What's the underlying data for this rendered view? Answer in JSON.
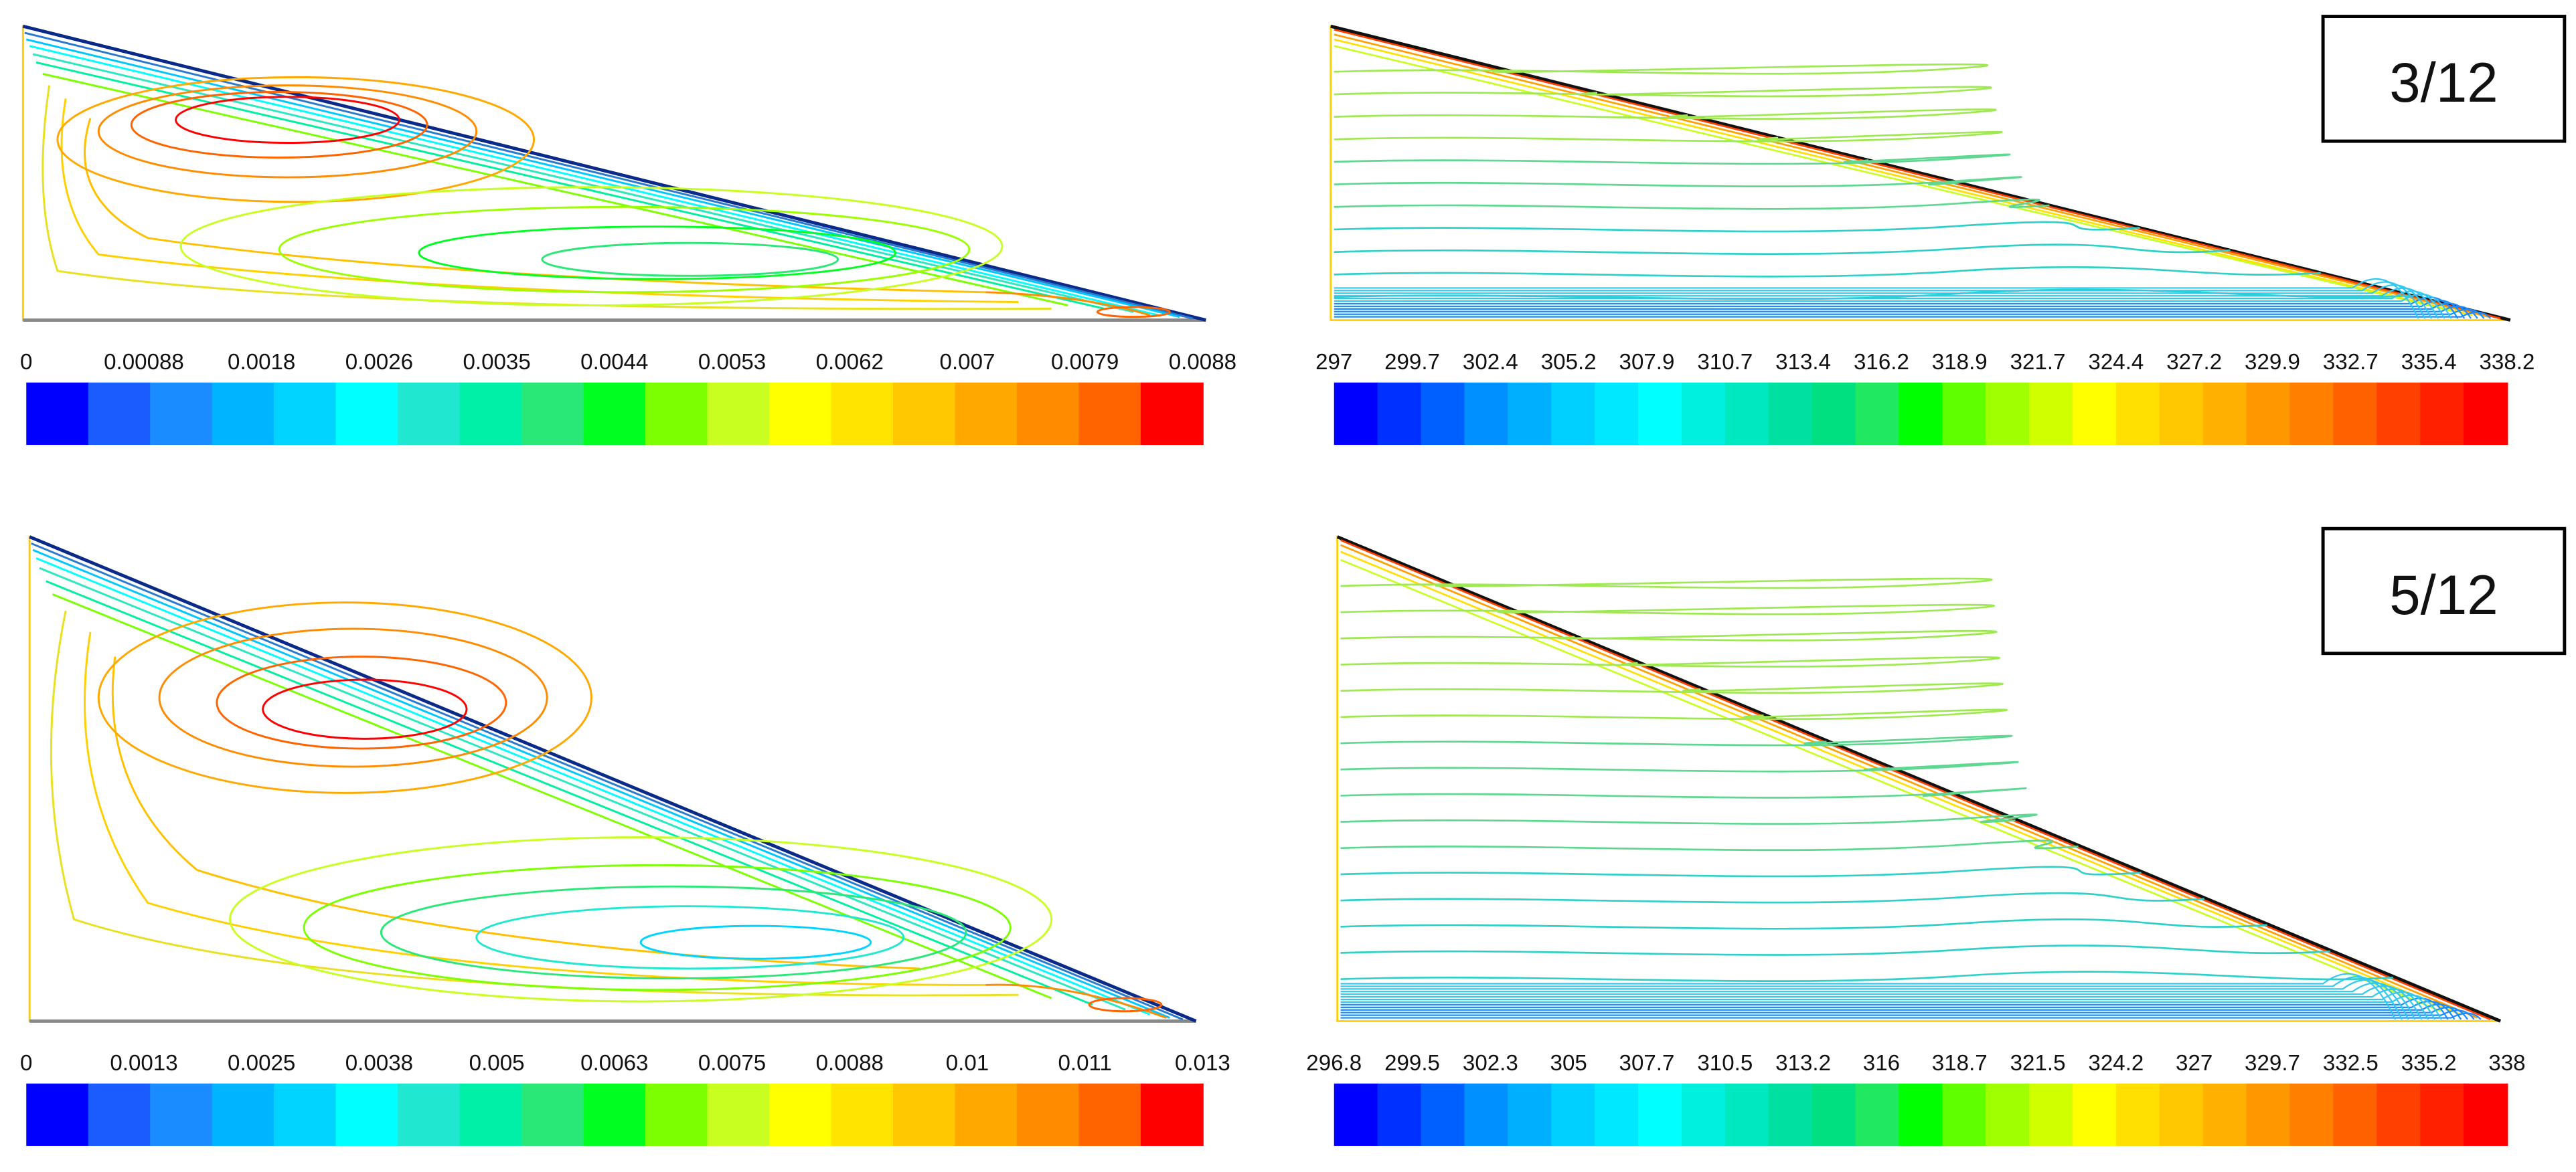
{
  "panels": [
    {
      "label": "3/12",
      "streamfunction": {
        "ticks": [
          "0",
          "0.00088",
          "0.0018",
          "0.0026",
          "0.0035",
          "0.0044",
          "0.0053",
          "0.0062",
          "0.007",
          "0.0079",
          "0.0088"
        ],
        "colors": [
          "#0000ff",
          "#1a5cff",
          "#1a8cff",
          "#00b4ff",
          "#00d4ff",
          "#00ffff",
          "#20e8d0",
          "#00f0a8",
          "#2ae878",
          "#00ff20",
          "#7cff00",
          "#c8ff20",
          "#ffff00",
          "#ffe400",
          "#ffc800",
          "#ffa800",
          "#ff8c00",
          "#ff6400",
          "#ff0000"
        ]
      },
      "temperature": {
        "ticks": [
          "297",
          "299.7",
          "302.4",
          "305.2",
          "307.9",
          "310.7",
          "313.4",
          "316.2",
          "318.9",
          "321.7",
          "324.4",
          "327.2",
          "329.9",
          "332.7",
          "335.4",
          "338.2"
        ]
      }
    },
    {
      "label": "5/12",
      "streamfunction": {
        "ticks": [
          "0",
          "0.0013",
          "0.0025",
          "0.0038",
          "0.005",
          "0.0063",
          "0.0075",
          "0.0088",
          "0.01",
          "0.011",
          "0.013"
        ]
      },
      "temperature": {
        "ticks": [
          "296.8",
          "299.5",
          "302.3",
          "305",
          "307.7",
          "310.5",
          "313.2",
          "316",
          "318.7",
          "321.5",
          "324.2",
          "327",
          "329.7",
          "332.5",
          "335.2",
          "338"
        ]
      }
    }
  ],
  "colors": {
    "temperature_scale": [
      "#0000ff",
      "#0030ff",
      "#0060ff",
      "#0090ff",
      "#00b0ff",
      "#00d0ff",
      "#00e8ff",
      "#00ffff",
      "#00f0e0",
      "#00e8c0",
      "#00e0a0",
      "#00e080",
      "#20e860",
      "#00ff00",
      "#60ff00",
      "#a0ff00",
      "#d0ff00",
      "#ffff00",
      "#ffe000",
      "#ffc800",
      "#ffb000",
      "#ff9800",
      "#ff8000",
      "#ff6000",
      "#ff4000",
      "#ff2000",
      "#ff0000"
    ]
  }
}
